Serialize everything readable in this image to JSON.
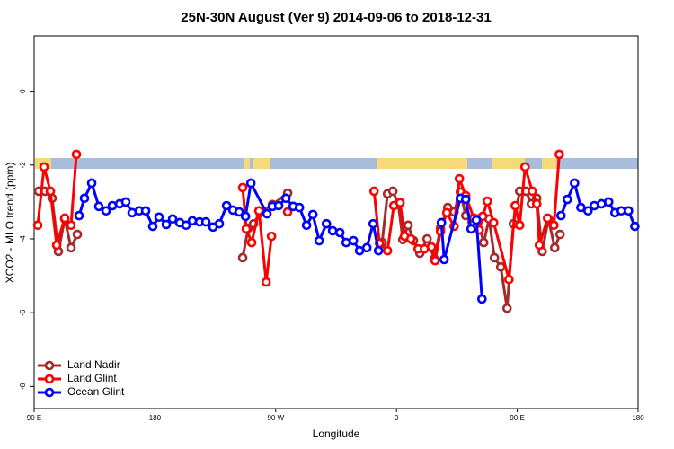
{
  "chart_data": {
    "type": "line",
    "title": "25N-30N August (Ver 9)   2014-09-06 to 2018-12-31",
    "x_label": "Longitude",
    "y_label": "XCO2 - MLO trend (ppm)",
    "xlim": [
      90,
      540
    ],
    "ylim": [
      -8.6,
      1.5
    ],
    "xticks": [
      {
        "value": 90,
        "label": "90 E"
      },
      180,
      {
        "value": 270,
        "label": "90 W"
      },
      {
        "value": 360,
        "label": "0"
      },
      {
        "value": 450,
        "label": "90 E"
      },
      {
        "value": 540,
        "label": "180"
      }
    ],
    "yticks": [
      0,
      -2,
      -4,
      -6,
      -8
    ],
    "legend": "bottom-left",
    "series": [
      {
        "name": "Land Nadir",
        "color": "#a52a2a",
        "x": [
          93.4,
          98.0,
          103.4,
          108.1,
          112.8,
          117.5,
          122.2,
          null,
          245.4,
          249.5,
          253.5,
          258.2,
          267.6,
          278.9,
          null,
          349.3,
          353.3,
          357.3,
          361.4,
          364.7,
          368.7,
          372.7,
          377.4,
          382.8,
          388.2,
          392.8,
          398.2,
          402.9,
          407.6,
          411.6,
          416.3,
          420.3,
          425.0,
          429.0,
          433.0,
          437.7,
          442.4,
          447.1,
          451.8,
          456.5,
          460.5,
          464.5,
          468.6,
          473.2,
          477.9,
          481.9
        ],
        "values": [
          -2.71,
          -2.71,
          -2.9,
          -4.34,
          -3.46,
          -4.24,
          -3.88,
          null,
          -4.51,
          -3.71,
          -3.59,
          -3.29,
          -3.07,
          -2.76,
          null,
          -4.1,
          -2.78,
          -2.71,
          -3.07,
          -4.02,
          -3.63,
          -4.05,
          -4.39,
          -4.0,
          -4.54,
          -3.71,
          -3.15,
          -3.27,
          -2.73,
          -3.37,
          -3.54,
          -3.46,
          -4.1,
          -3.46,
          -4.51,
          -4.76,
          -5.88,
          -3.59,
          -2.71,
          -2.71,
          -3.05,
          -2.9,
          -4.34,
          -3.46,
          -4.24,
          -3.88
        ]
      },
      {
        "name": "Land Glint",
        "color": "#ff0000",
        "x": [
          92.7,
          97.4,
          102.1,
          106.8,
          112.8,
          117.5,
          121.5,
          null,
          245.4,
          248.1,
          252.1,
          257.5,
          262.9,
          266.9,
          null,
          278.9,
          null,
          343.3,
          347.3,
          353.3,
          358.0,
          362.7,
          366.0,
          370.7,
          376.1,
          380.8,
          386.1,
          388.8,
          392.8,
          397.5,
          402.9,
          406.9,
          411.6,
          417.6,
          421.7,
          424.3,
          427.7,
          432.4,
          443.8,
          448.5,
          451.8,
          455.8,
          461.2,
          464.5,
          466.5,
          472.6,
          477.3,
          481.3
        ],
        "values": [
          -3.63,
          -2.05,
          -2.71,
          -4.17,
          -3.44,
          -3.63,
          -1.71,
          null,
          -2.61,
          -3.73,
          -4.1,
          -3.24,
          -5.17,
          -3.93,
          null,
          -3.27,
          null,
          -2.71,
          -4.12,
          -4.32,
          -3.1,
          -3.02,
          -3.93,
          -4.0,
          -4.27,
          -4.27,
          -4.22,
          -4.59,
          -3.8,
          -3.29,
          -3.66,
          -2.37,
          -2.83,
          -3.44,
          -3.76,
          -3.39,
          -2.98,
          -3.56,
          -5.1,
          -3.1,
          -3.63,
          -2.05,
          -2.71,
          -3.05,
          -4.17,
          -3.44,
          -3.63,
          -1.71
        ]
      },
      {
        "name": "Ocean Glint",
        "color": "#0000ff",
        "x": [
          123.5,
          127.5,
          132.9,
          138.2,
          143.6,
          148.3,
          153.7,
          158.3,
          163.0,
          168.4,
          173.1,
          178.4,
          183.1,
          188.5,
          193.2,
          198.5,
          203.2,
          207.9,
          213.3,
          218.0,
          223.3,
          228.0,
          233.4,
          238.1,
          242.8,
          247.5,
          251.5,
          263.5,
          267.6,
          272.2,
          277.6,
          283.0,
          287.7,
          293.0,
          297.7,
          302.4,
          307.8,
          312.4,
          317.8,
          322.5,
          327.9,
          332.5,
          337.9,
          342.6,
          346.6,
          null,
          393.5,
          395.5,
          407.6,
          411.6,
          415.6,
          419.6,
          423.7,
          null,
          482.6,
          487.3,
          492.7,
          497.4,
          502.7,
          507.4,
          512.8,
          518.1,
          522.8,
          527.5,
          532.9,
          537.6
        ],
        "values": [
          -3.37,
          -2.9,
          -2.49,
          -3.12,
          -3.24,
          -3.1,
          -3.05,
          -3.0,
          -3.29,
          -3.24,
          -3.24,
          -3.66,
          -3.41,
          -3.61,
          -3.46,
          -3.56,
          -3.63,
          -3.51,
          -3.54,
          -3.54,
          -3.68,
          -3.59,
          -3.1,
          -3.22,
          -3.27,
          -3.39,
          -2.49,
          -3.32,
          -3.12,
          -3.1,
          -2.9,
          -3.12,
          -3.15,
          -3.63,
          -3.34,
          -4.05,
          -3.59,
          -3.78,
          -3.83,
          -4.1,
          -4.05,
          -4.32,
          -4.24,
          -3.59,
          -4.32,
          null,
          -3.56,
          -4.56,
          -2.9,
          -2.93,
          -3.73,
          -3.49,
          -5.63,
          null,
          -3.37,
          -2.93,
          -2.49,
          -3.15,
          -3.24,
          -3.1,
          -3.05,
          -3.0,
          -3.29,
          -3.24,
          -3.24,
          -3.66
        ]
      }
    ]
  }
}
